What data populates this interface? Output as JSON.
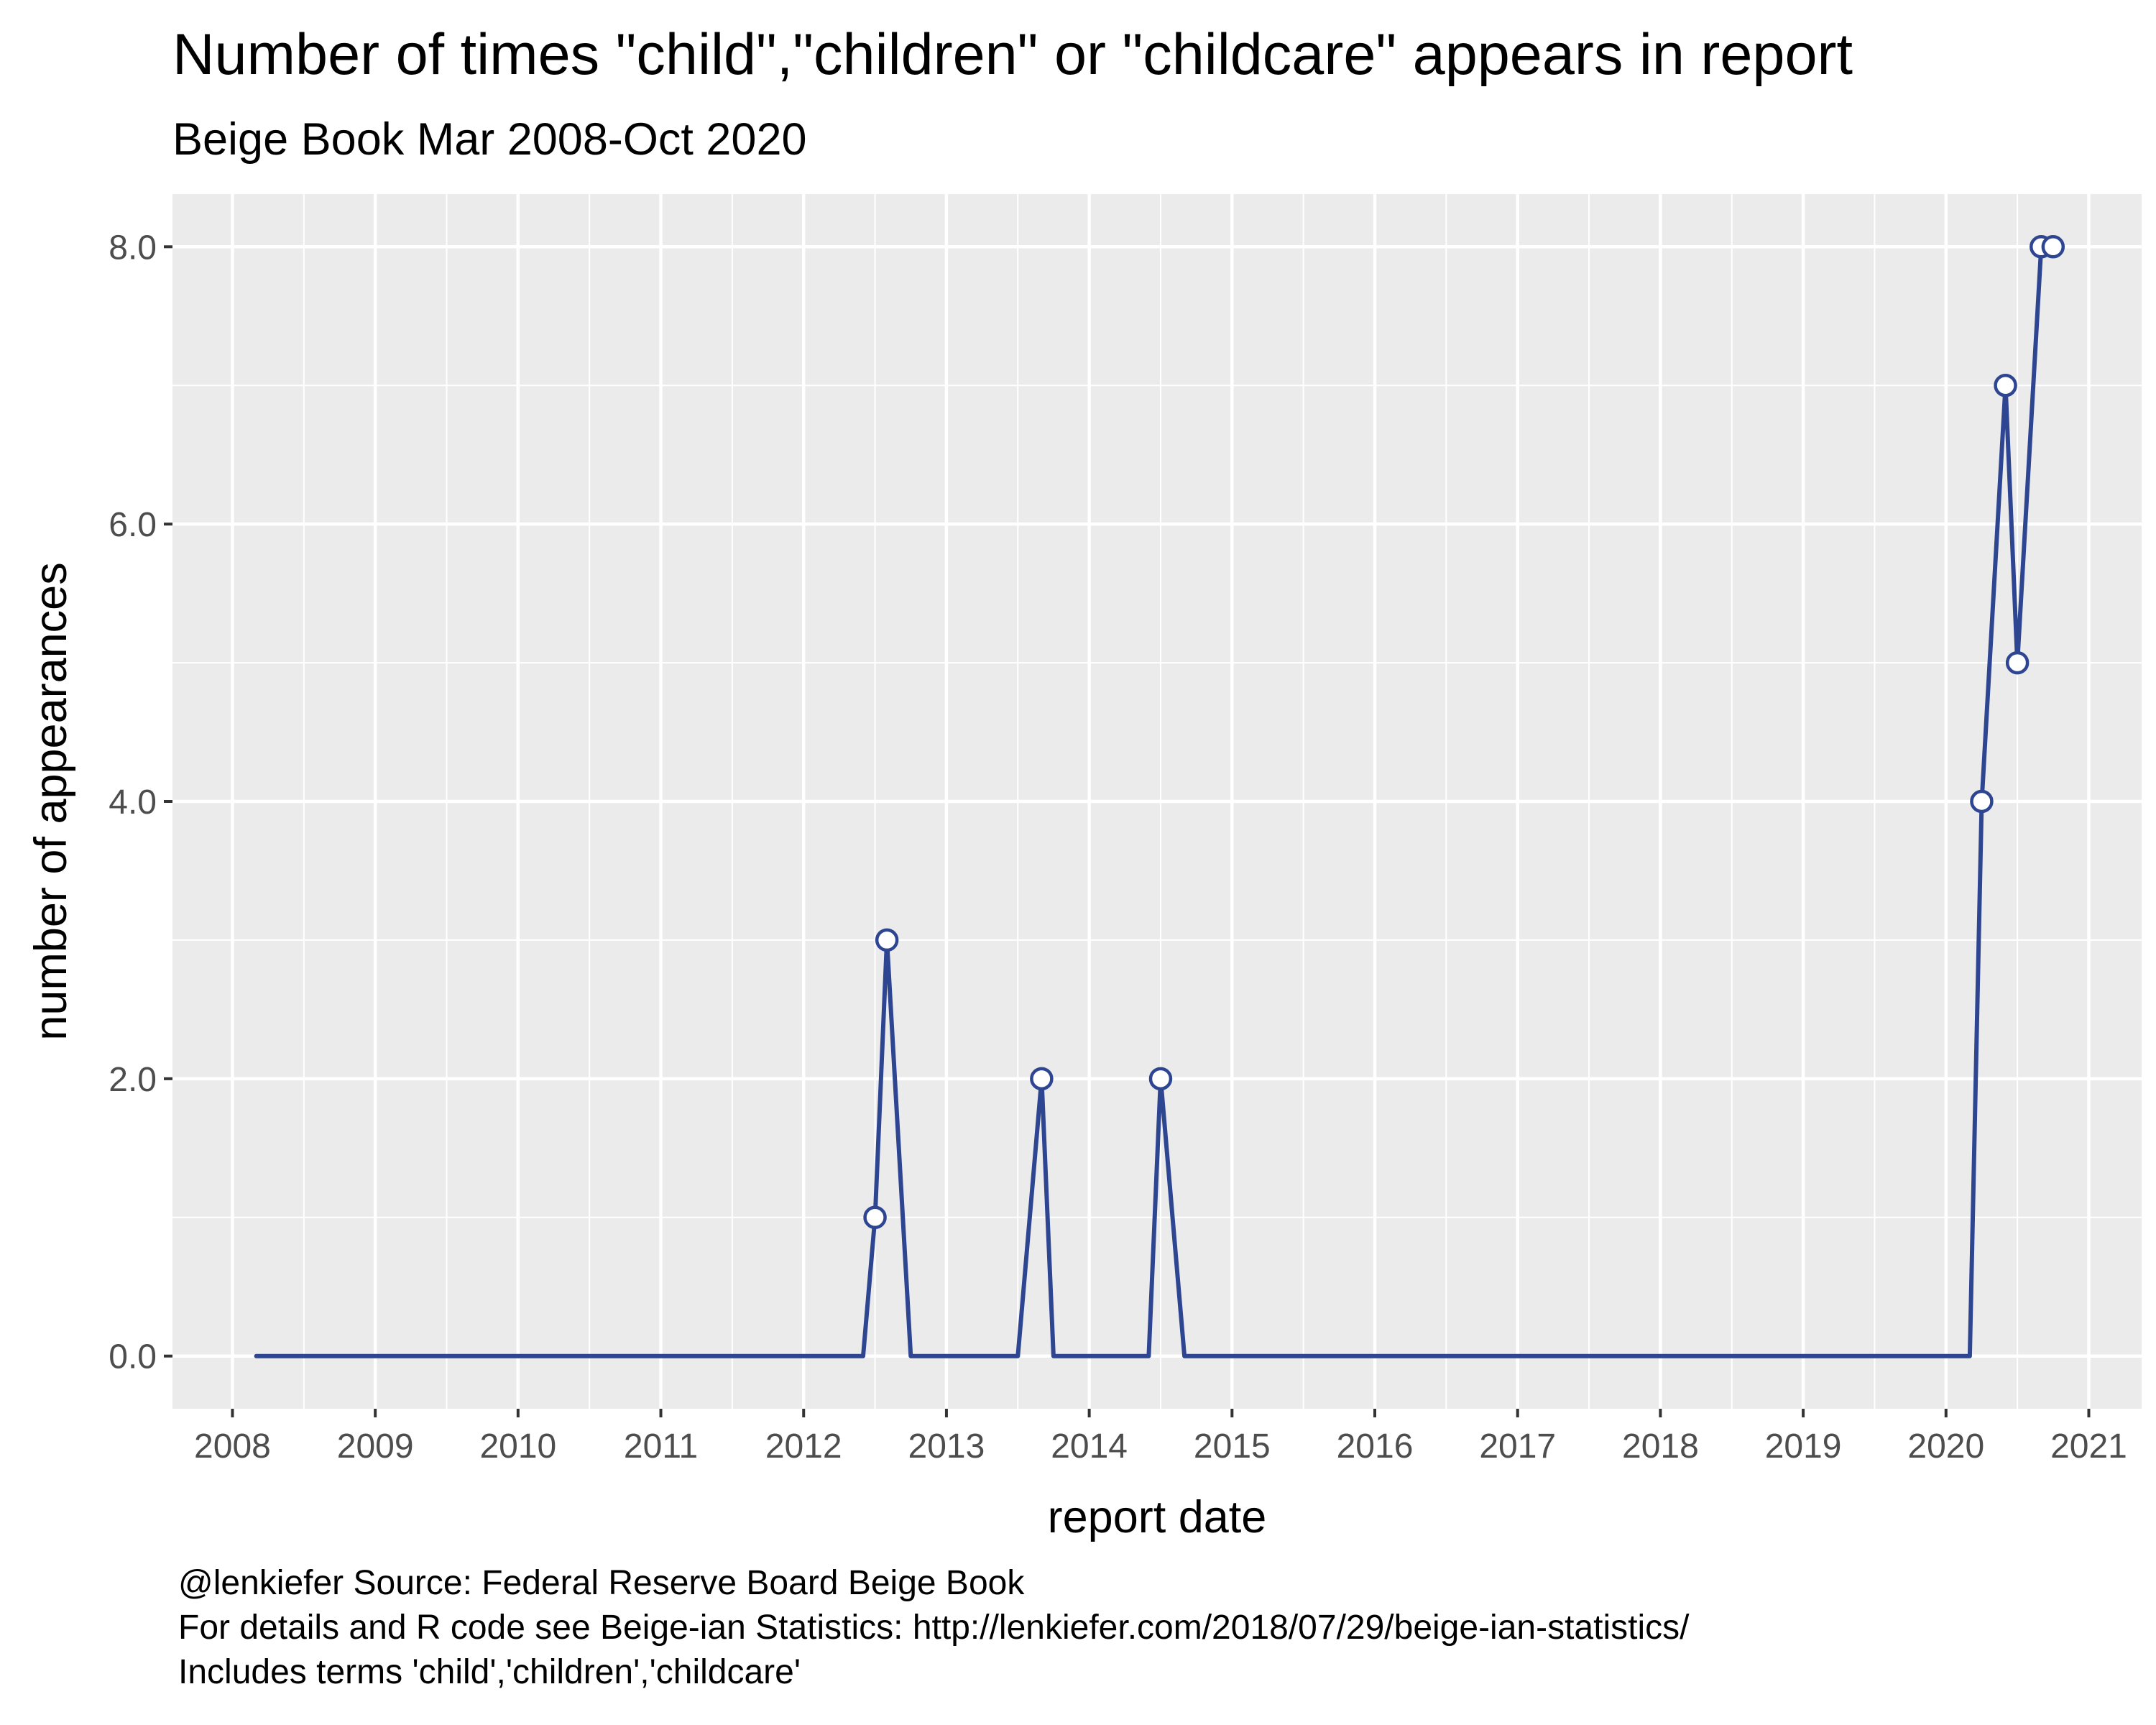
{
  "chart_data": {
    "type": "line",
    "title": "Number of times \"child\",\"children\" or \"childcare\" appears in report",
    "subtitle": "Beige Book Mar 2008-Oct 2020",
    "xlabel": "report date",
    "ylabel": "number of appearances",
    "xlim": [
      2007.58,
      2021.37
    ],
    "ylim": [
      -0.38,
      8.38
    ],
    "x_ticks": [
      "2008",
      "2009",
      "2010",
      "2011",
      "2012",
      "2013",
      "2014",
      "2015",
      "2016",
      "2017",
      "2018",
      "2019",
      "2020",
      "2021"
    ],
    "y_ticks": [
      "0.0",
      "2.0",
      "4.0",
      "6.0",
      "8.0"
    ],
    "grid": true,
    "legend": "none",
    "caption": [
      "@lenkiefer Source: Federal Reserve Board Beige Book",
      "For details and R code see Beige-ian Statistics: http://lenkiefer.com/2018/07/29/beige-ian-statistics/",
      "Includes terms 'child','children','childcare'"
    ],
    "colors": {
      "line": "#2e4591",
      "panel": "#ebebeb",
      "grid": "#ffffff",
      "point_fill": "#ffffff"
    },
    "series": [
      {
        "points": [
          {
            "x": "2008-03",
            "y": 0
          },
          {
            "x": "2012-06",
            "y": 0
          },
          {
            "x": "2012-07",
            "y": 1
          },
          {
            "x": "2012-08",
            "y": 3
          },
          {
            "x": "2012-10",
            "y": 0
          },
          {
            "x": "2013-07",
            "y": 0
          },
          {
            "x": "2013-09",
            "y": 2
          },
          {
            "x": "2013-10",
            "y": 0
          },
          {
            "x": "2014-06",
            "y": 0
          },
          {
            "x": "2014-07",
            "y": 2
          },
          {
            "x": "2014-09",
            "y": 0
          },
          {
            "x": "2020-03",
            "y": 0
          },
          {
            "x": "2020-04",
            "y": 4
          },
          {
            "x": "2020-06",
            "y": 7
          },
          {
            "x": "2020-07",
            "y": 5
          },
          {
            "x": "2020-09",
            "y": 8
          },
          {
            "x": "2020-10",
            "y": 8
          }
        ],
        "marked_points": [
          {
            "x": "2012-07",
            "y": 1
          },
          {
            "x": "2012-08",
            "y": 3
          },
          {
            "x": "2013-09",
            "y": 2
          },
          {
            "x": "2014-07",
            "y": 2
          },
          {
            "x": "2020-04",
            "y": 4
          },
          {
            "x": "2020-06",
            "y": 7
          },
          {
            "x": "2020-07",
            "y": 5
          },
          {
            "x": "2020-09",
            "y": 8
          },
          {
            "x": "2020-10",
            "y": 8
          }
        ]
      }
    ]
  }
}
